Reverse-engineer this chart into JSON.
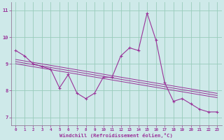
{
  "xlabel": "Windchill (Refroidissement éolien,°C)",
  "bg_color": "#cee9e9",
  "line_color": "#993399",
  "grid_color": "#99ccbb",
  "axis_color": "#886688",
  "hours": [
    0,
    1,
    2,
    3,
    4,
    5,
    6,
    7,
    8,
    9,
    10,
    11,
    12,
    13,
    14,
    15,
    16,
    17,
    18,
    19,
    20,
    21,
    22,
    23
  ],
  "windchill": [
    9.5,
    9.3,
    9.0,
    8.9,
    8.8,
    8.1,
    8.6,
    7.9,
    7.7,
    7.9,
    8.5,
    8.5,
    9.3,
    9.6,
    9.5,
    10.9,
    9.9,
    8.3,
    7.6,
    7.7,
    7.5,
    7.3,
    7.2,
    7.2
  ],
  "ylim": [
    6.7,
    11.3
  ],
  "xlim": [
    -0.5,
    23.5
  ],
  "yticks": [
    7,
    8,
    9,
    10,
    11
  ],
  "xticks": [
    0,
    1,
    2,
    3,
    4,
    5,
    6,
    7,
    8,
    9,
    10,
    11,
    12,
    13,
    14,
    15,
    16,
    17,
    18,
    19,
    20,
    21,
    22,
    23
  ]
}
